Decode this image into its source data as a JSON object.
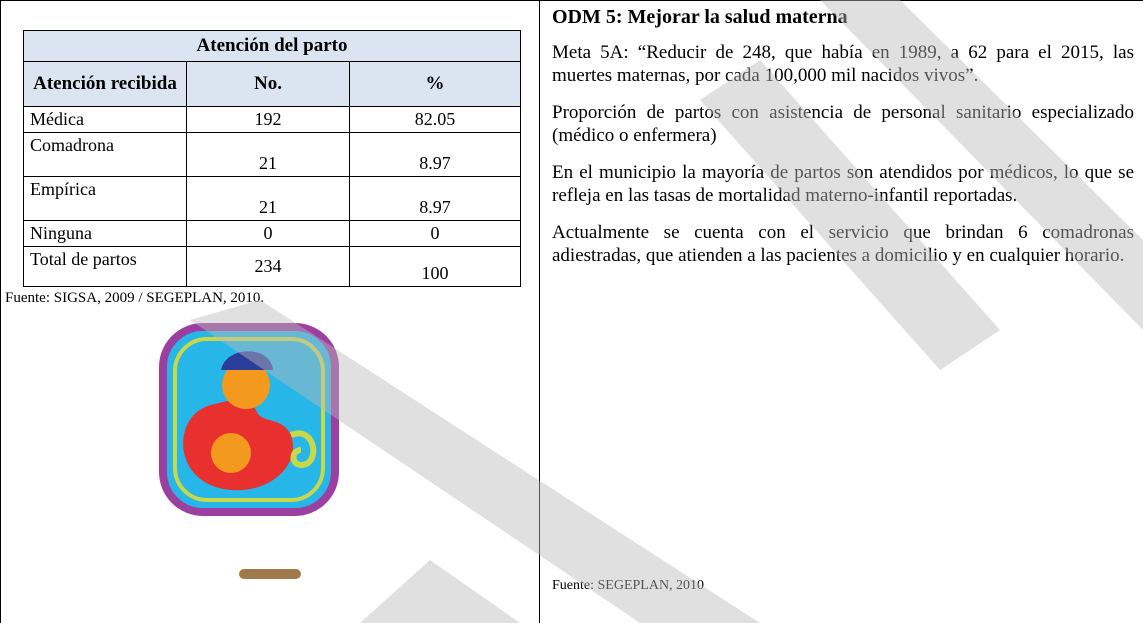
{
  "table": {
    "title": "Atención del parto",
    "header": [
      "Atención recibida",
      "No.",
      "%"
    ],
    "rows": [
      [
        "Médica",
        "192",
        "82.05"
      ],
      [
        "Comadrona",
        "21",
        "8.97"
      ],
      [
        "Empírica",
        "21",
        "8.97"
      ],
      [
        "Ninguna",
        "0",
        "0"
      ],
      [
        "Total de partos",
        "234",
        "100"
      ]
    ],
    "source": "Fuente: SIGSA, 2009 / SEGEPLAN, 2010."
  },
  "text": {
    "heading": "ODM 5: Mejorar la salud materna",
    "paragraphs": [
      "Meta 5A: “Reducir de 248, que había en 1989, a 62 para el 2015, las muertes maternas, por cada 100,000 mil nacidos vivos”.",
      "Proporción de partos con asistencia de personal sanitario especializado (médico o enfermera)",
      "En el municipio la mayoría de partos son atendidos por médicos, lo que se refleja en las tasas de mortalidad materno-infantil reportadas.",
      "Actualmente se cuenta con el servicio que brindan 6 comadronas adiestradas, que atienden a las pacientes a domicilio y en cualquier horario."
    ],
    "source": "Fuente: SEGEPLAN, 2010"
  }
}
